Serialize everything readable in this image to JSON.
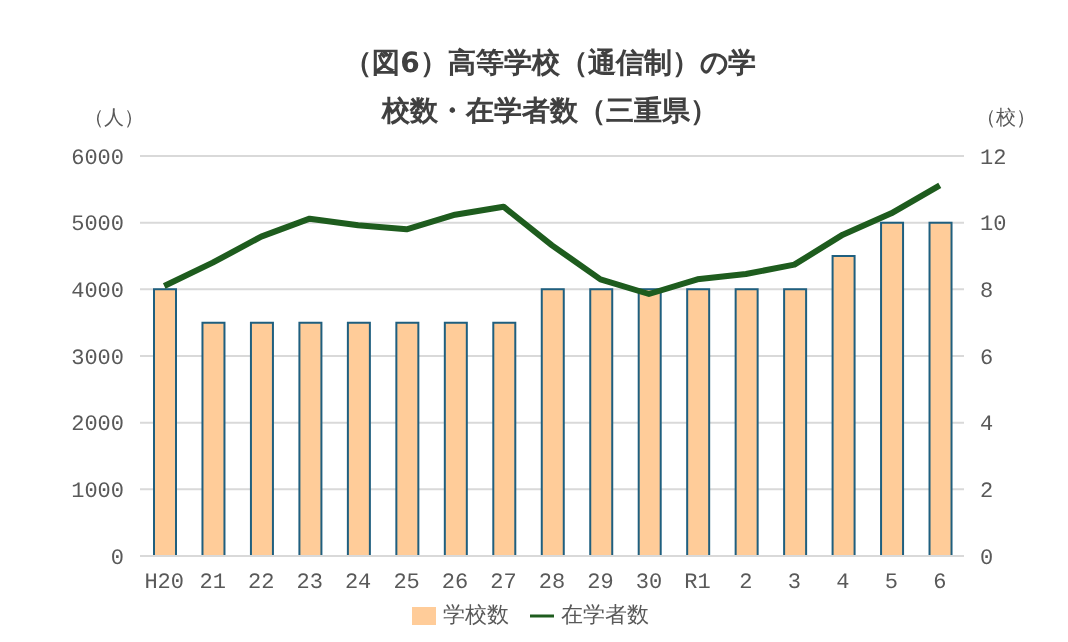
{
  "chart_data": {
    "type": "bar",
    "title": "（図6）高等学校（通信制）の学校数・在学者数（三重県）",
    "ylabel": "（人）",
    "y2label": "（校）",
    "categories": [
      "H20",
      "21",
      "22",
      "23",
      "24",
      "25",
      "26",
      "27",
      "28",
      "29",
      "30",
      "R1",
      "2",
      "3",
      "4",
      "5",
      "6"
    ],
    "series": [
      {
        "name": "学校数",
        "axis": "y2",
        "color": "#ffcc99",
        "values": [
          8,
          7,
          7,
          7,
          7,
          7,
          7,
          7,
          8,
          8,
          8,
          8,
          8,
          8,
          9,
          10,
          10
        ]
      },
      {
        "name": "在学者数",
        "type": "line",
        "color": "#1e5c1e",
        "values": [
          4050,
          4400,
          4790,
          5060,
          4960,
          4900,
          5120,
          5240,
          4660,
          4150,
          3930,
          4150,
          4230,
          4370,
          4820,
          5140,
          5560
        ]
      }
    ],
    "ylim": [
      0,
      6000
    ],
    "yticks": [
      0,
      1000,
      2000,
      3000,
      4000,
      5000,
      6000
    ],
    "y2lim": [
      0,
      12
    ],
    "y2ticks": [
      0,
      2,
      4,
      6,
      8,
      10,
      12
    ],
    "grid": "y",
    "legend": "bottom",
    "marker": "none"
  }
}
